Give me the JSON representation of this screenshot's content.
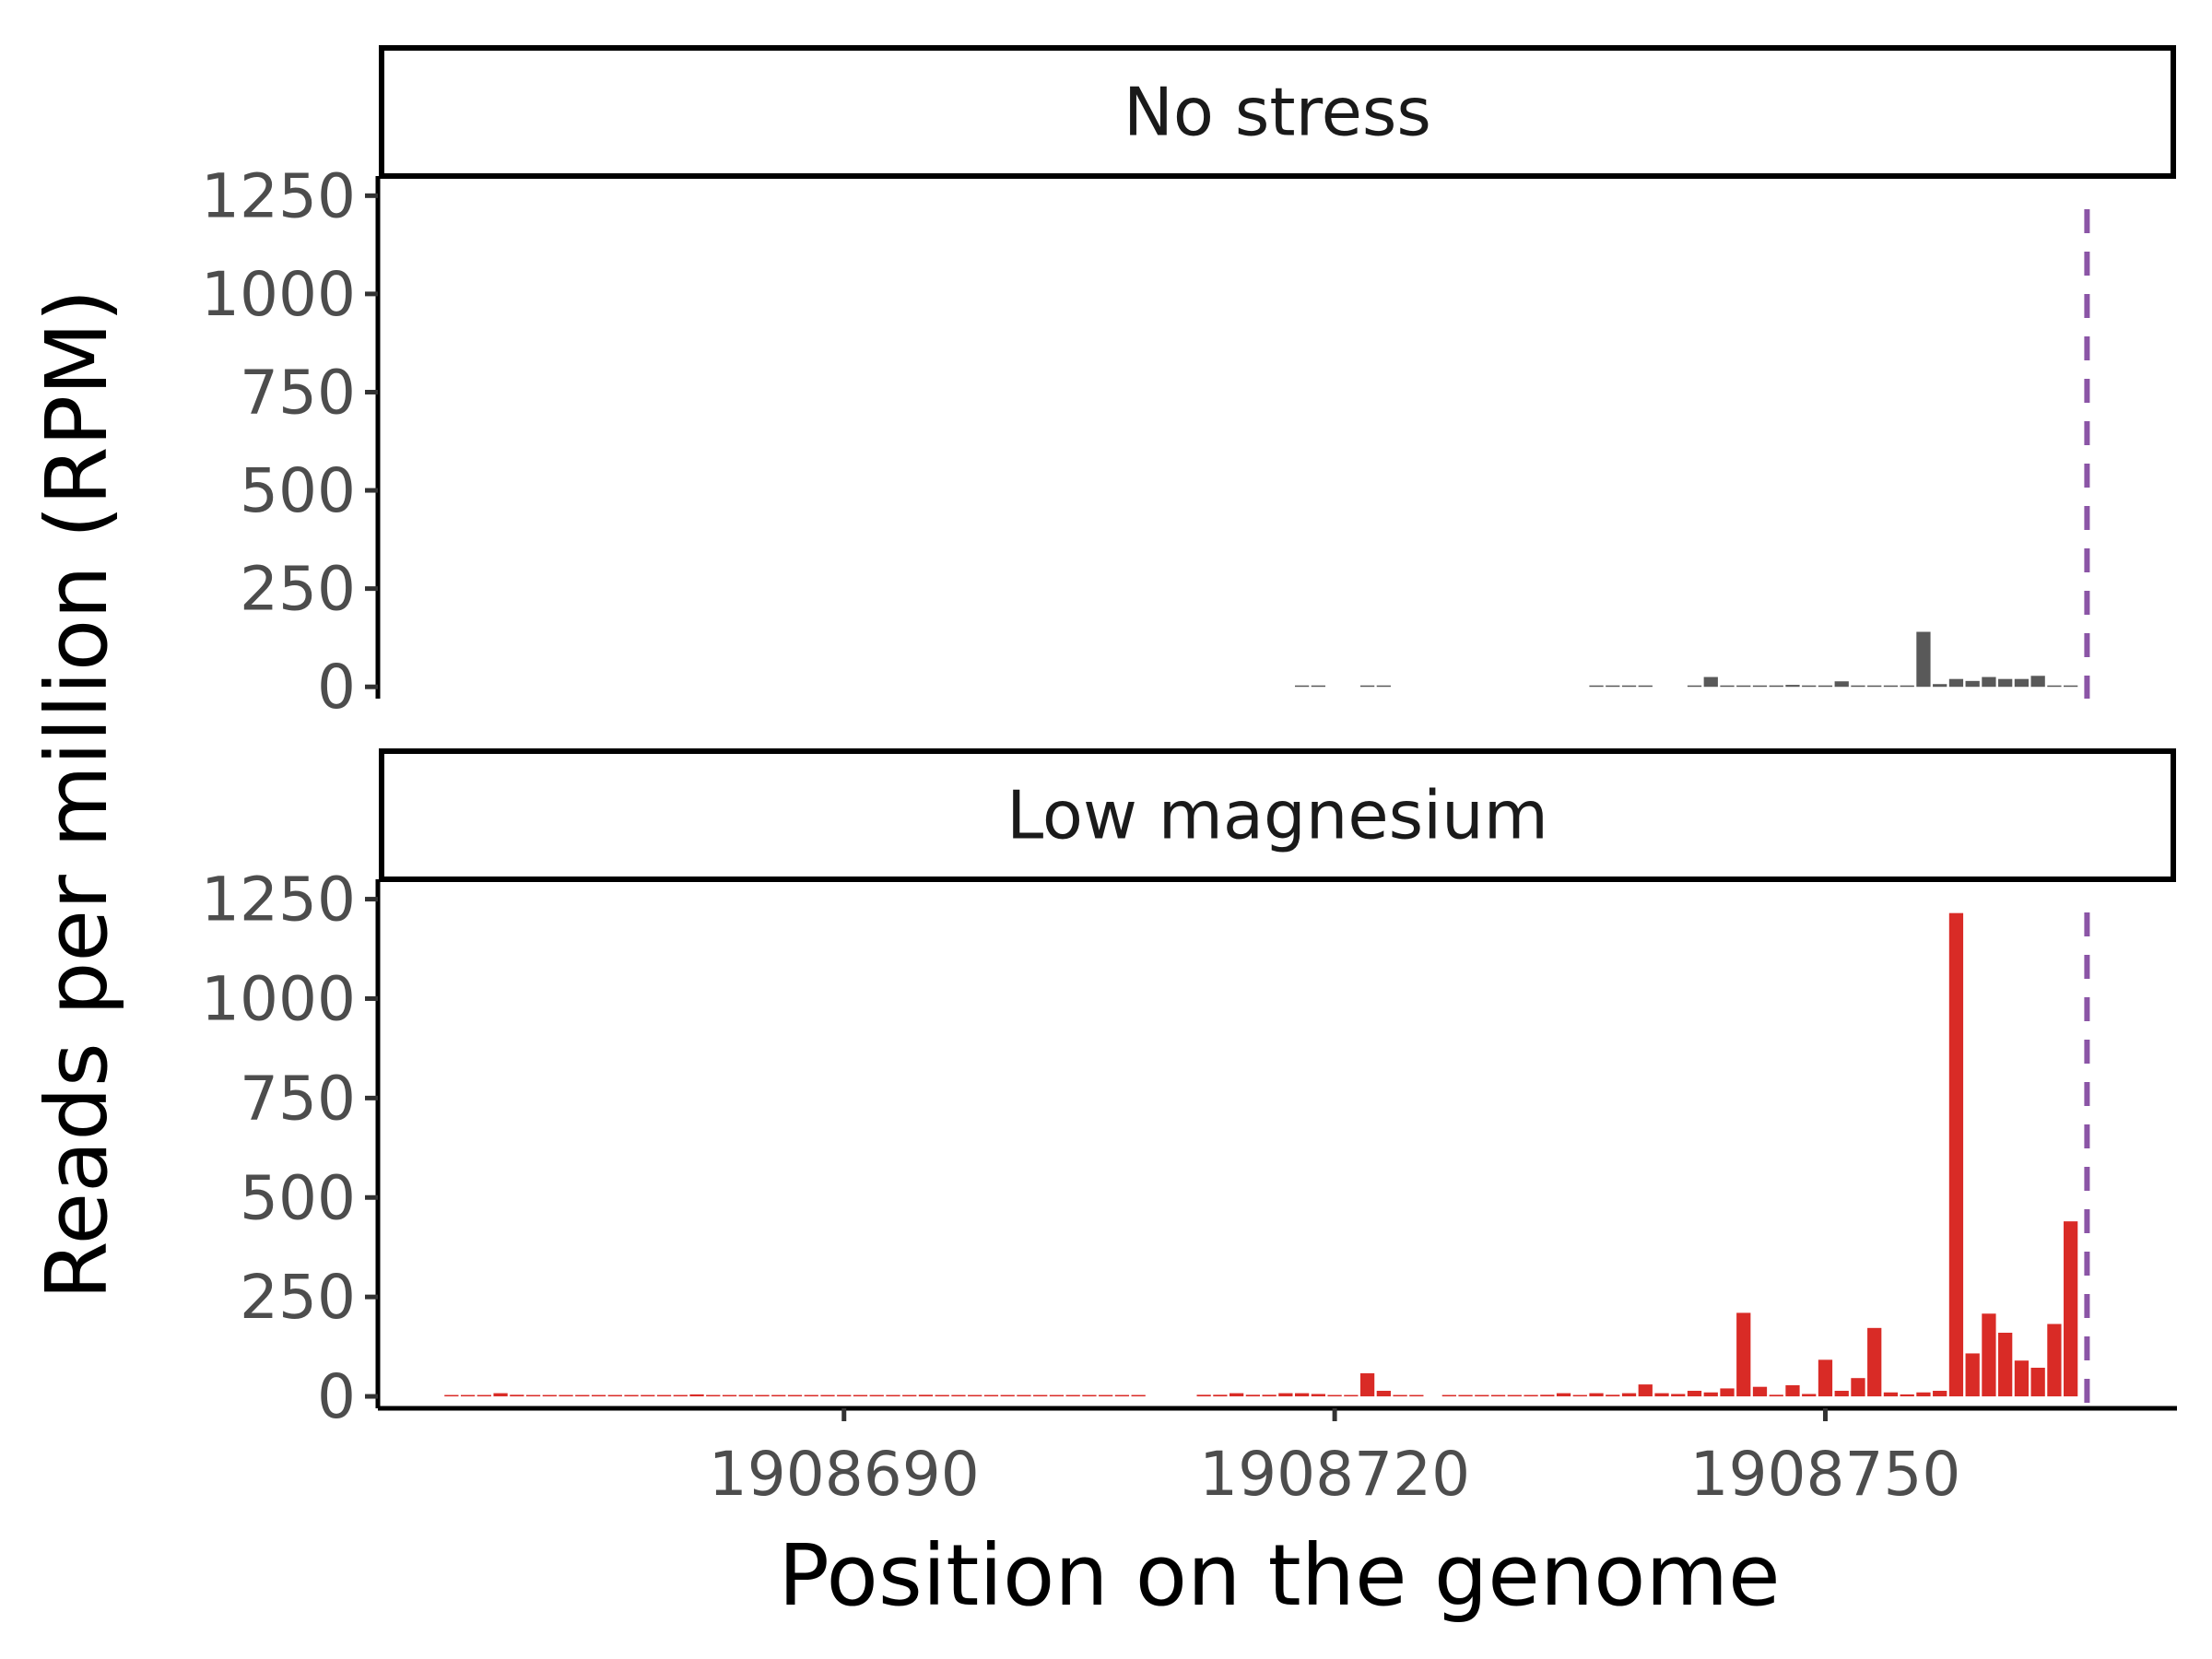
{
  "chart_data": {
    "type": "bar",
    "xlabel": "Position on the genome",
    "ylabel": "Reads per million (RPM)",
    "x_ticks": [
      1908690,
      1908720,
      1908750
    ],
    "y_ticks": [
      0,
      250,
      500,
      750,
      1000,
      1250
    ],
    "xlim": [
      1908661.5,
      1908771.5
    ],
    "ylim": [
      -30,
      1300
    ],
    "grid": false,
    "legend": "none",
    "reference_line": {
      "x": 1908766,
      "style": "dashed",
      "color": "#8b55a6"
    },
    "panels": [
      {
        "label": "No stress",
        "color": "#595959",
        "x": [
          1908718,
          1908719,
          1908722,
          1908723,
          1908736,
          1908737,
          1908738,
          1908739,
          1908742,
          1908743,
          1908744,
          1908745,
          1908746,
          1908747,
          1908748,
          1908749,
          1908750,
          1908751,
          1908752,
          1908753,
          1908754,
          1908755,
          1908756,
          1908757,
          1908758,
          1908759,
          1908760,
          1908761,
          1908762,
          1908763,
          1908764,
          1908765
        ],
        "values": [
          1,
          1,
          1,
          1,
          1,
          1,
          2,
          2,
          1,
          25,
          1,
          1,
          2,
          2,
          5,
          1,
          3,
          14,
          3,
          1,
          1,
          1,
          140,
          7,
          20,
          15,
          25,
          20,
          20,
          28,
          1,
          1
        ]
      },
      {
        "label": "Low magnesium",
        "color": "#d92b26",
        "x": [
          1908666,
          1908667,
          1908668,
          1908669,
          1908670,
          1908671,
          1908672,
          1908673,
          1908674,
          1908675,
          1908676,
          1908677,
          1908678,
          1908679,
          1908680,
          1908681,
          1908682,
          1908683,
          1908684,
          1908685,
          1908686,
          1908687,
          1908688,
          1908689,
          1908690,
          1908691,
          1908692,
          1908693,
          1908694,
          1908695,
          1908696,
          1908697,
          1908698,
          1908699,
          1908700,
          1908701,
          1908702,
          1908703,
          1908704,
          1908705,
          1908706,
          1908707,
          1908708,
          1908712,
          1908713,
          1908714,
          1908715,
          1908716,
          1908717,
          1908718,
          1908719,
          1908720,
          1908721,
          1908722,
          1908723,
          1908724,
          1908725,
          1908727,
          1908728,
          1908729,
          1908730,
          1908731,
          1908732,
          1908733,
          1908734,
          1908735,
          1908736,
          1908737,
          1908738,
          1908739,
          1908740,
          1908741,
          1908742,
          1908743,
          1908744,
          1908745,
          1908746,
          1908747,
          1908748,
          1908749,
          1908750,
          1908751,
          1908752,
          1908753,
          1908754,
          1908755,
          1908756,
          1908757,
          1908758,
          1908759,
          1908760,
          1908761,
          1908762,
          1908763,
          1908764,
          1908765
        ],
        "values": [
          2,
          2,
          3,
          8,
          4,
          2,
          2,
          2,
          1,
          1,
          2,
          2,
          1,
          1,
          2,
          5,
          2,
          2,
          2,
          2,
          2,
          2,
          2,
          2,
          2,
          2,
          2,
          2,
          2,
          4,
          2,
          2,
          2,
          2,
          2,
          2,
          1,
          1,
          1,
          1,
          1,
          1,
          1,
          4,
          4,
          8,
          4,
          4,
          8,
          8,
          6,
          2,
          2,
          58,
          14,
          2,
          1,
          2,
          2,
          2,
          3,
          2,
          2,
          4,
          8,
          3,
          8,
          4,
          8,
          30,
          8,
          6,
          14,
          10,
          20,
          210,
          24,
          4,
          28,
          6,
          92,
          14,
          46,
          172,
          10,
          5,
          10,
          14,
          1215,
          108,
          208,
          160,
          90,
          72,
          182,
          440
        ]
      }
    ]
  }
}
